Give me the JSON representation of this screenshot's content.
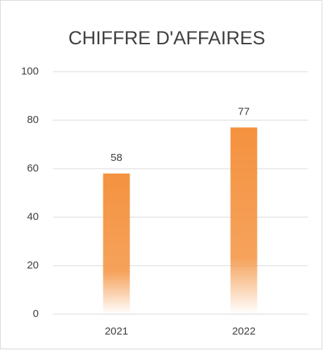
{
  "chart_data": {
    "type": "bar",
    "title": "CHIFFRE D'AFFAIRES",
    "categories": [
      "2021",
      "2022"
    ],
    "values": [
      58,
      77
    ],
    "color": "#f4923f",
    "ylim": [
      0,
      100
    ],
    "yticks": [
      0,
      20,
      40,
      60,
      80,
      100
    ],
    "grid": true
  }
}
